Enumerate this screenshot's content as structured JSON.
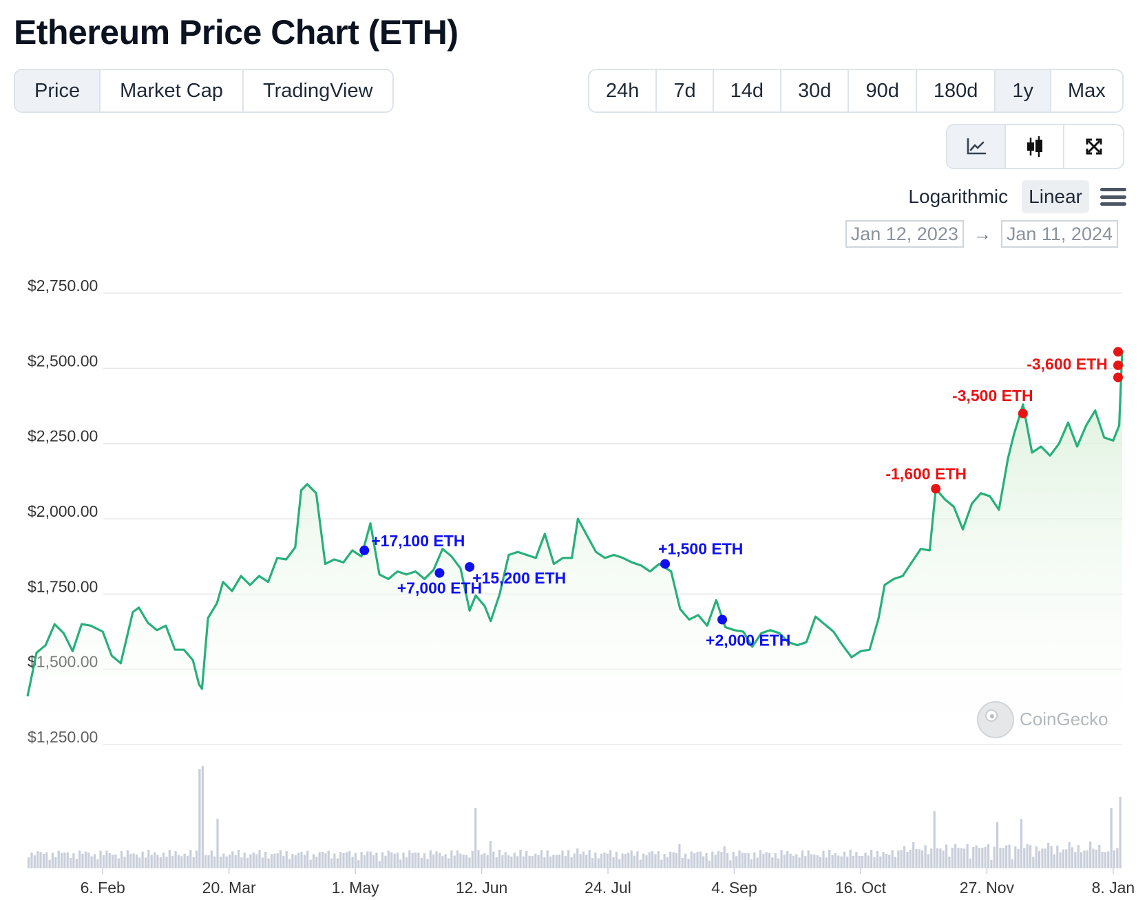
{
  "page": {
    "title": "Ethereum Price Chart (ETH)"
  },
  "view_tabs": [
    {
      "label": "Price",
      "active": true
    },
    {
      "label": "Market Cap",
      "active": false
    },
    {
      "label": "TradingView",
      "active": false
    }
  ],
  "range_tabs": [
    {
      "label": "24h",
      "active": false
    },
    {
      "label": "7d",
      "active": false
    },
    {
      "label": "14d",
      "active": false
    },
    {
      "label": "30d",
      "active": false
    },
    {
      "label": "90d",
      "active": false
    },
    {
      "label": "180d",
      "active": false
    },
    {
      "label": "1y",
      "active": true
    },
    {
      "label": "Max",
      "active": false
    }
  ],
  "chart_type_icons": [
    "line-chart-icon",
    "candlestick-icon",
    "fullscreen-icon"
  ],
  "scale": {
    "logarithmic": "Logarithmic",
    "linear": "Linear",
    "selected": "linear"
  },
  "date_range": {
    "from": "Jan 12, 2023",
    "arrow": "→",
    "to": "Jan 11, 2024"
  },
  "watermark": "CoinGecko",
  "colors": {
    "line": "#26b07a",
    "area": "#e3f4e3",
    "volume": "#c8ceda",
    "buy_marker": "#1010ee",
    "sell_marker": "#e81313",
    "grid": "#e6e8ea",
    "active_bg": "#eef2f6"
  },
  "chart_data": {
    "type": "line",
    "y_scale": "linear",
    "ylim": [
      1250,
      2750
    ],
    "xlim": [
      "2023-01-12",
      "2024-01-11"
    ],
    "y_ticks": [
      {
        "value": 2750,
        "label": "$2,750.00"
      },
      {
        "value": 2500,
        "label": "$2,500.00"
      },
      {
        "value": 2250,
        "label": "$2,250.00"
      },
      {
        "value": 2000,
        "label": "$2,000.00"
      },
      {
        "value": 1750,
        "label": "$1,750.00"
      },
      {
        "value": 1500,
        "label": "$1,500.00"
      },
      {
        "value": 1250,
        "label": "$1,250.00"
      }
    ],
    "x_ticks": [
      {
        "date": "2023-02-06",
        "label": "6. Feb"
      },
      {
        "date": "2023-03-20",
        "label": "20. Mar"
      },
      {
        "date": "2023-05-01",
        "label": "1. May"
      },
      {
        "date": "2023-06-12",
        "label": "12. Jun"
      },
      {
        "date": "2023-07-24",
        "label": "24. Jul"
      },
      {
        "date": "2023-09-04",
        "label": "4. Sep"
      },
      {
        "date": "2023-10-16",
        "label": "16. Oct"
      },
      {
        "date": "2023-11-27",
        "label": "27. Nov"
      },
      {
        "date": "2024-01-08",
        "label": "8. Jan"
      }
    ],
    "price_series": {
      "x": [
        "2023-01-12",
        "2023-01-15",
        "2023-01-18",
        "2023-01-21",
        "2023-01-24",
        "2023-01-27",
        "2023-01-30",
        "2023-02-02",
        "2023-02-06",
        "2023-02-09",
        "2023-02-12",
        "2023-02-16",
        "2023-02-18",
        "2023-02-21",
        "2023-02-24",
        "2023-02-27",
        "2023-03-02",
        "2023-03-05",
        "2023-03-08",
        "2023-03-10",
        "2023-03-11",
        "2023-03-13",
        "2023-03-16",
        "2023-03-18",
        "2023-03-21",
        "2023-03-24",
        "2023-03-27",
        "2023-03-30",
        "2023-04-02",
        "2023-04-05",
        "2023-04-08",
        "2023-04-11",
        "2023-04-13",
        "2023-04-15",
        "2023-04-18",
        "2023-04-21",
        "2023-04-24",
        "2023-04-27",
        "2023-04-30",
        "2023-05-03",
        "2023-05-06",
        "2023-05-09",
        "2023-05-12",
        "2023-05-15",
        "2023-05-18",
        "2023-05-21",
        "2023-05-24",
        "2023-05-27",
        "2023-05-30",
        "2023-06-02",
        "2023-06-05",
        "2023-06-08",
        "2023-06-10",
        "2023-06-13",
        "2023-06-15",
        "2023-06-18",
        "2023-06-21",
        "2023-06-24",
        "2023-06-27",
        "2023-06-30",
        "2023-07-03",
        "2023-07-06",
        "2023-07-09",
        "2023-07-12",
        "2023-07-14",
        "2023-07-17",
        "2023-07-20",
        "2023-07-23",
        "2023-07-26",
        "2023-07-29",
        "2023-08-01",
        "2023-08-04",
        "2023-08-07",
        "2023-08-10",
        "2023-08-14",
        "2023-08-17",
        "2023-08-20",
        "2023-08-23",
        "2023-08-26",
        "2023-08-29",
        "2023-09-01",
        "2023-09-04",
        "2023-09-07",
        "2023-09-10",
        "2023-09-13",
        "2023-09-16",
        "2023-09-19",
        "2023-09-22",
        "2023-09-25",
        "2023-09-28",
        "2023-10-01",
        "2023-10-04",
        "2023-10-07",
        "2023-10-10",
        "2023-10-13",
        "2023-10-16",
        "2023-10-19",
        "2023-10-22",
        "2023-10-24",
        "2023-10-27",
        "2023-10-30",
        "2023-11-02",
        "2023-11-05",
        "2023-11-08",
        "2023-11-10",
        "2023-11-13",
        "2023-11-16",
        "2023-11-19",
        "2023-11-22",
        "2023-11-25",
        "2023-11-28",
        "2023-12-01",
        "2023-12-04",
        "2023-12-06",
        "2023-12-09",
        "2023-12-12",
        "2023-12-15",
        "2023-12-18",
        "2023-12-21",
        "2023-12-24",
        "2023-12-27",
        "2023-12-30",
        "2024-01-02",
        "2024-01-05",
        "2024-01-08",
        "2024-01-10",
        "2024-01-11"
      ],
      "y": [
        1410,
        1555,
        1580,
        1650,
        1620,
        1560,
        1650,
        1645,
        1625,
        1545,
        1520,
        1690,
        1705,
        1655,
        1630,
        1645,
        1565,
        1565,
        1530,
        1450,
        1435,
        1670,
        1720,
        1790,
        1760,
        1810,
        1780,
        1810,
        1790,
        1870,
        1865,
        1905,
        2095,
        2115,
        2085,
        1850,
        1865,
        1855,
        1895,
        1875,
        1985,
        1815,
        1800,
        1825,
        1815,
        1825,
        1800,
        1830,
        1900,
        1875,
        1835,
        1695,
        1745,
        1710,
        1660,
        1750,
        1880,
        1890,
        1880,
        1870,
        1950,
        1850,
        1870,
        1870,
        2000,
        1945,
        1890,
        1870,
        1880,
        1870,
        1855,
        1845,
        1825,
        1850,
        1825,
        1700,
        1665,
        1680,
        1645,
        1730,
        1640,
        1630,
        1625,
        1575,
        1620,
        1630,
        1620,
        1590,
        1580,
        1590,
        1675,
        1650,
        1625,
        1580,
        1540,
        1560,
        1565,
        1670,
        1780,
        1800,
        1810,
        1855,
        1900,
        1895,
        2100,
        2065,
        2040,
        1965,
        2050,
        2085,
        2075,
        2030,
        2200,
        2280,
        2380,
        2220,
        2240,
        2210,
        2250,
        2320,
        2240,
        2310,
        2360,
        2270,
        2260,
        2310,
        2560
      ]
    },
    "volume_series": {
      "x": [
        "2023-01-12",
        "2023-02-06",
        "2023-03-10",
        "2023-03-11",
        "2023-03-16",
        "2023-04-13",
        "2023-05-04",
        "2023-06-10",
        "2023-06-15",
        "2023-07-14",
        "2023-08-17",
        "2023-09-01",
        "2023-10-24",
        "2023-11-10",
        "2023-12-01",
        "2023-12-09",
        "2024-01-08",
        "2024-01-11"
      ],
      "relative_values": [
        0.1,
        0.12,
        0.9,
        0.93,
        0.45,
        0.15,
        0.12,
        0.55,
        0.25,
        0.18,
        0.22,
        0.2,
        0.15,
        0.52,
        0.42,
        0.45,
        0.55,
        0.65
      ]
    },
    "annotations": [
      {
        "date": "2023-05-04",
        "price": 1895,
        "label": "+17,100 ETH",
        "type": "buy"
      },
      {
        "date": "2023-05-29",
        "price": 1820,
        "label": "+7,000 ETH",
        "type": "buy"
      },
      {
        "date": "2023-06-08",
        "price": 1840,
        "label": "+15,200 ETH",
        "type": "buy"
      },
      {
        "date": "2023-08-12",
        "price": 1850,
        "label": "+1,500 ETH",
        "type": "buy"
      },
      {
        "date": "2023-08-31",
        "price": 1665,
        "label": "+2,000 ETH",
        "type": "buy"
      },
      {
        "date": "2023-11-10",
        "price": 2100,
        "label": "-1,600 ETH",
        "type": "sell"
      },
      {
        "date": "2023-12-09",
        "price": 2350,
        "label": "-3,500 ETH",
        "type": "sell"
      },
      {
        "date": "2024-01-11",
        "price": 2470,
        "label": "",
        "type": "sell"
      },
      {
        "date": "2024-01-11",
        "price": 2510,
        "label": "-3,600 ETH",
        "type": "sell"
      },
      {
        "date": "2024-01-11",
        "price": 2555,
        "label": "",
        "type": "sell"
      }
    ]
  }
}
